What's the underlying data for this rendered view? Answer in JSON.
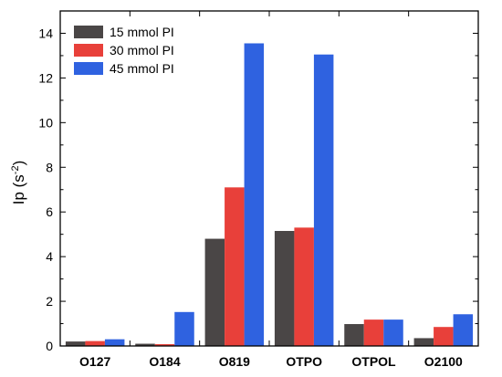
{
  "chart_data": {
    "type": "bar",
    "title": "",
    "xlabel": "",
    "ylabel": {
      "base": "Ip (s",
      "sup": "-2",
      "close": ")"
    },
    "ylim": [
      0,
      15
    ],
    "yticks": [
      0,
      2,
      4,
      6,
      8,
      10,
      12,
      14
    ],
    "categories": [
      "O127",
      "O184",
      "O819",
      "OTPO",
      "OTPOL",
      "O2100"
    ],
    "series": [
      {
        "name": "15 mmol PI",
        "color": "#4a4646",
        "values": [
          0.2,
          0.1,
          4.8,
          5.15,
          0.98,
          0.35
        ]
      },
      {
        "name": "30 mmol PI",
        "color": "#e8403a",
        "values": [
          0.22,
          0.08,
          7.1,
          5.3,
          1.18,
          0.85
        ]
      },
      {
        "name": "45 mmol PI",
        "color": "#2f62e0",
        "values": [
          0.3,
          1.52,
          13.55,
          13.05,
          1.18,
          1.42
        ]
      }
    ],
    "legend_position": "top-left",
    "grid": false
  }
}
